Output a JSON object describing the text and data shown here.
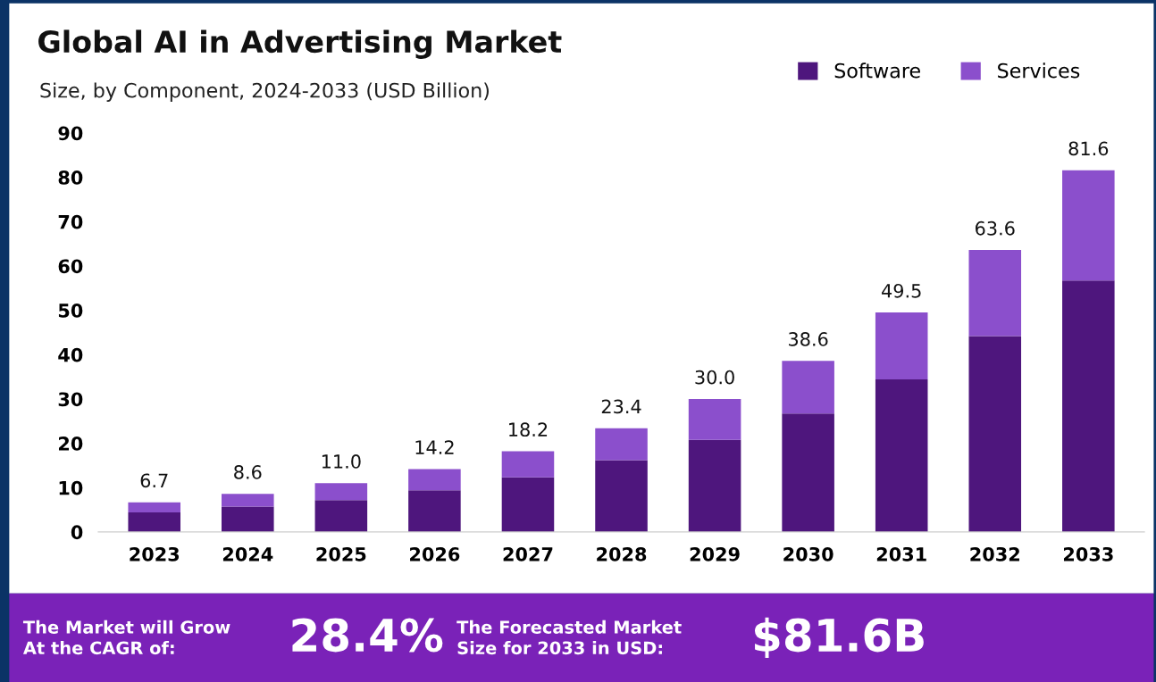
{
  "chart_data": {
    "type": "bar",
    "title": "Global AI in Advertising Market",
    "subtitle": "Size, by Component, 2024-2033 (USD Billion)",
    "categories": [
      "2023",
      "2024",
      "2025",
      "2026",
      "2027",
      "2028",
      "2029",
      "2030",
      "2031",
      "2032",
      "2033"
    ],
    "series": [
      {
        "name": "Software",
        "color": "#4e167d",
        "values": [
          4.4,
          5.7,
          7.2,
          9.4,
          12.3,
          16.2,
          20.8,
          26.7,
          34.4,
          44.2,
          56.7
        ]
      },
      {
        "name": "Services",
        "color": "#8b4fcc",
        "values": [
          2.3,
          2.9,
          3.8,
          4.8,
          5.9,
          7.2,
          9.2,
          11.9,
          15.1,
          19.4,
          24.9
        ]
      }
    ],
    "stacked": true,
    "totals": [
      "6.7",
      "8.6",
      "11.0",
      "14.2",
      "18.2",
      "23.4",
      "30.0",
      "38.6",
      "49.5",
      "63.6",
      "81.6"
    ],
    "ylim": [
      0,
      90
    ],
    "yticks": [
      0,
      10,
      20,
      30,
      40,
      50,
      60,
      70,
      80,
      90
    ],
    "grid": false,
    "legend": "top right",
    "annotations": [
      "The Market will Grow\nAt the CAGR of:",
      "28.4%",
      "The Forecasted Market\nSize for 2033 in USD:",
      "$81.6B"
    ]
  }
}
